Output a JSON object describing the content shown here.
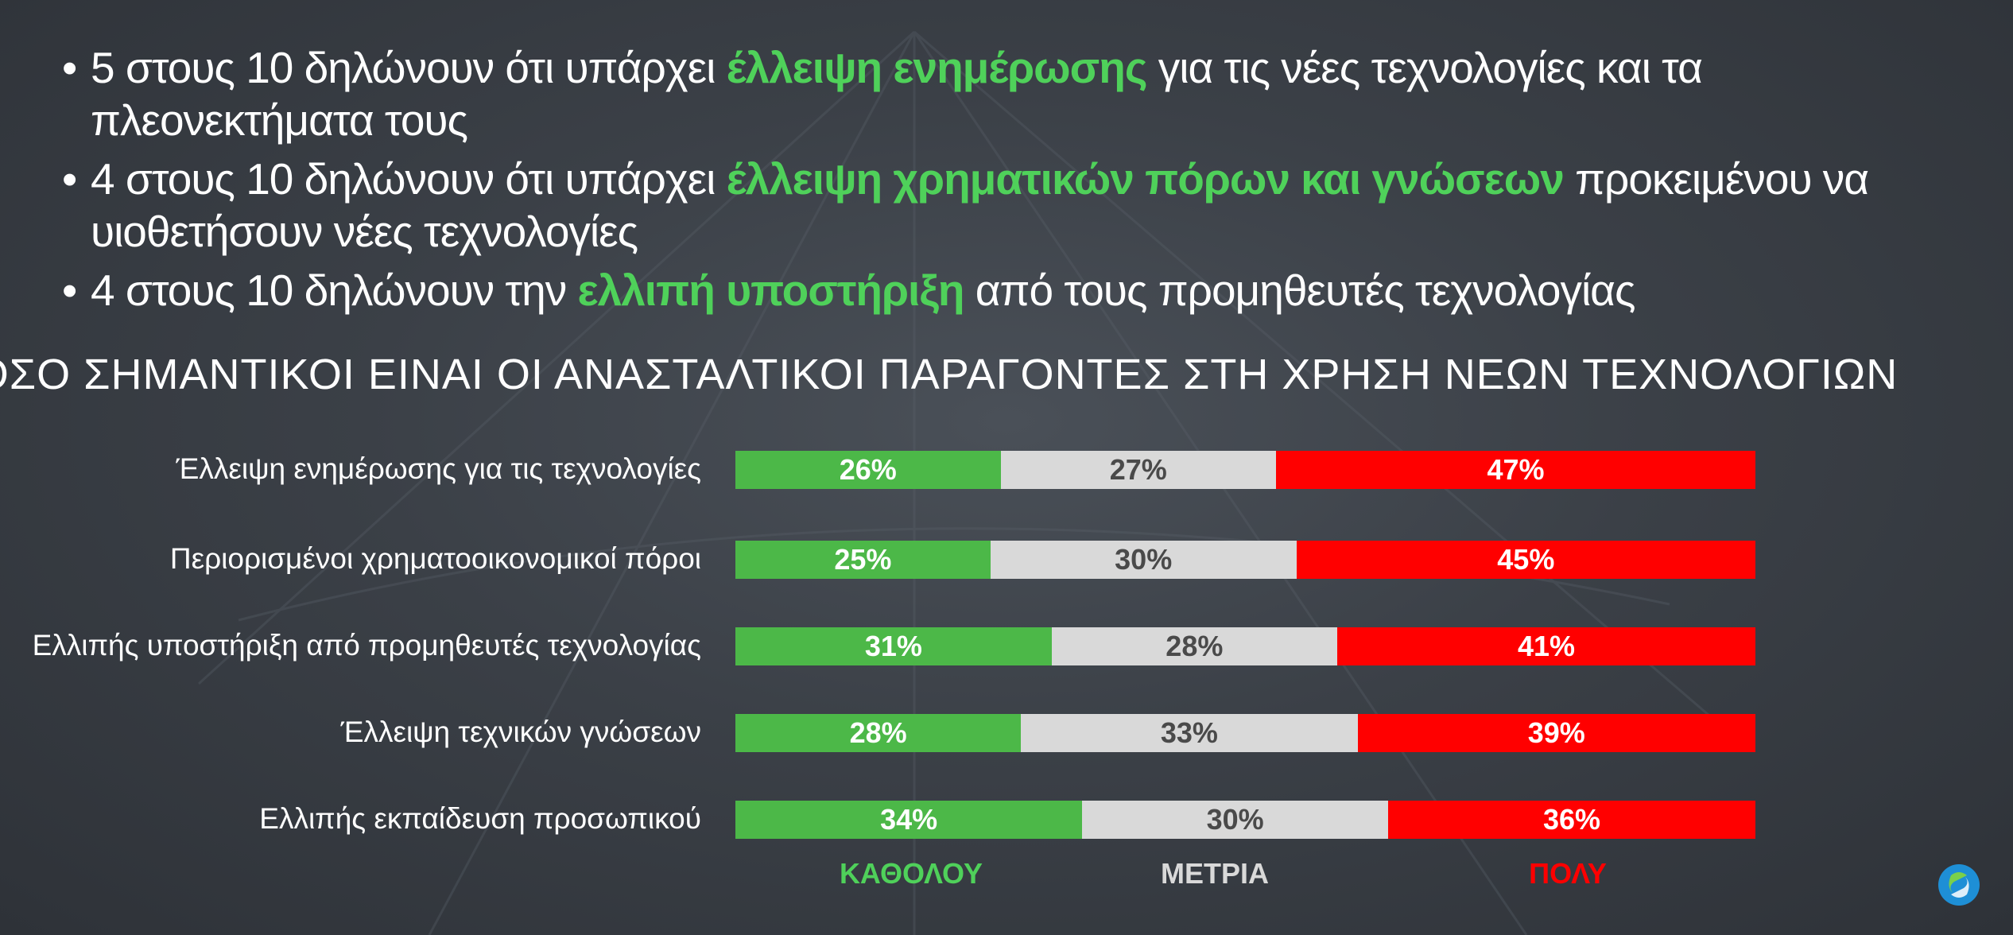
{
  "bullets": [
    {
      "before": "5 στους 10 δηλώνουν ότι υπάρχει ",
      "highlight": "έλλειψη ενημέρωσης",
      "after": " για τις νέες τεχνολογίες και τα πλεονεκτήματα τους"
    },
    {
      "before": "4 στους 10 δηλώνουν ότι υπάρχει ",
      "highlight": "έλλειψη χρηματικών πόρων και γνώσεων",
      "after": " προκειμένου να υιοθετήσουν νέες τεχνολογίες"
    },
    {
      "before": "4 στους 10 δηλώνουν την ",
      "highlight": "ελλιπή υποστήριξη",
      "after": " από τους προμηθευτές τεχνολογίας"
    }
  ],
  "colors": {
    "kathólou": "#4cb848",
    "metria": "#d9d9d9",
    "poly": "#ff0000"
  },
  "chart_data": {
    "type": "bar",
    "orientation": "horizontal",
    "stacked": true,
    "normalized": true,
    "title": "ΠΟΣΟ ΣΗΜΑΝΤΙΚΟΙ ΕΙΝΑΙ ΟΙ ΑΝΑΣΤΑΛΤΙΚΟΙ ΠΑΡΑΓΟΝΤΕΣ ΣΤΗ ΧΡΗΣΗ ΝΕΩΝ ΤΕΧΝΟΛΟΓΙΩΝ",
    "categories": [
      "Έλλειψη ενημέρωσης για τις τεχνολογίες",
      "Περιορισμένοι χρηματοοικονομικοί πόροι",
      "Ελλιπής υποστήριξη από προμηθευτές τεχνολογίας",
      "Έλλειψη τεχνικών γνώσεων",
      "Ελλιπής εκπαίδευση προσωπικού"
    ],
    "series": [
      {
        "name": "ΚΑΘΟΛΟΥ",
        "values": [
          26,
          25,
          31,
          28,
          34
        ],
        "labels": [
          "26%",
          "25%",
          "31%",
          "28%",
          "34%"
        ]
      },
      {
        "name": "ΜΕΤΡΙΑ",
        "values": [
          27,
          30,
          28,
          33,
          30
        ],
        "labels": [
          "27%",
          "30%",
          "28%",
          "33%",
          "30%"
        ]
      },
      {
        "name": "ΠΟΛΥ",
        "values": [
          47,
          45,
          41,
          39,
          36
        ],
        "labels": [
          "47%",
          "45%",
          "41%",
          "39%",
          "36%"
        ]
      }
    ],
    "legend_position": "bottom",
    "xlim": [
      0,
      100
    ]
  }
}
